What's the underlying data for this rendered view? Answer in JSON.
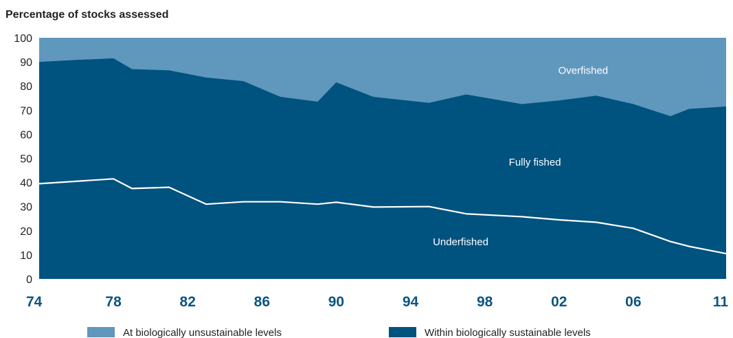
{
  "chart_data": {
    "type": "area",
    "ylabel": "Percentage of stocks assessed",
    "xlabel": "",
    "xlim": [
      1974,
      2011
    ],
    "ylim": [
      0,
      100
    ],
    "yticks": [
      0,
      10,
      20,
      30,
      40,
      50,
      60,
      70,
      80,
      90,
      100
    ],
    "xticks": [
      {
        "value": 1974,
        "label": "74"
      },
      {
        "value": 1978,
        "label": "78"
      },
      {
        "value": 1982,
        "label": "82"
      },
      {
        "value": 1986,
        "label": "86"
      },
      {
        "value": 1990,
        "label": "90"
      },
      {
        "value": 1994,
        "label": "94"
      },
      {
        "value": 1998,
        "label": "98"
      },
      {
        "value": 2002,
        "label": "02"
      },
      {
        "value": 2006,
        "label": "06"
      },
      {
        "value": 2011,
        "label": "11"
      }
    ],
    "series": [
      {
        "name": "Within biologically sustainable levels",
        "color": "#00527f",
        "x": [
          1974,
          1976,
          1978,
          1979,
          1981,
          1983,
          1985,
          1987,
          1989,
          1990,
          1992,
          1995,
          1997,
          2000,
          2002,
          2004,
          2006,
          2008,
          2009,
          2011
        ],
        "values": [
          90.0,
          90.8,
          91.5,
          87.0,
          86.5,
          83.5,
          82.0,
          75.5,
          73.5,
          81.5,
          75.5,
          73.0,
          76.5,
          72.5,
          74.0,
          76.0,
          72.5,
          67.5,
          70.5,
          71.5
        ]
      },
      {
        "name": "At biologically unsustainable levels",
        "color": "#5f97bd",
        "x": [
          1974,
          2011
        ],
        "values": [
          100,
          100
        ]
      }
    ],
    "underfished_line": {
      "color": "#ffffff",
      "x": [
        1974,
        1976,
        1978,
        1979,
        1981,
        1983,
        1985,
        1987,
        1989,
        1990,
        1992,
        1995,
        1997,
        2000,
        2002,
        2004,
        2006,
        2008,
        2009,
        2011
      ],
      "values": [
        39.5,
        40.5,
        41.5,
        37.5,
        38.0,
        31.0,
        32.0,
        32.0,
        31.0,
        31.8,
        29.8,
        30.0,
        27.0,
        25.8,
        24.5,
        23.5,
        21.0,
        15.5,
        13.5,
        10.5
      ]
    },
    "region_labels": [
      {
        "text": "Overfished",
        "x": 2003.3,
        "y": 85
      },
      {
        "text": "Fully fished",
        "x": 2000.7,
        "y": 47
      },
      {
        "text": "Underfished",
        "x": 1996.7,
        "y": 14
      }
    ],
    "legend": {
      "placement": "bottom",
      "items": [
        {
          "label": "At biologically unsustainable levels",
          "color": "#5f97bd"
        },
        {
          "label": "Within biologically sustainable levels",
          "color": "#00527f"
        }
      ]
    },
    "x_tick_color": "#0b5580",
    "grid": false
  }
}
